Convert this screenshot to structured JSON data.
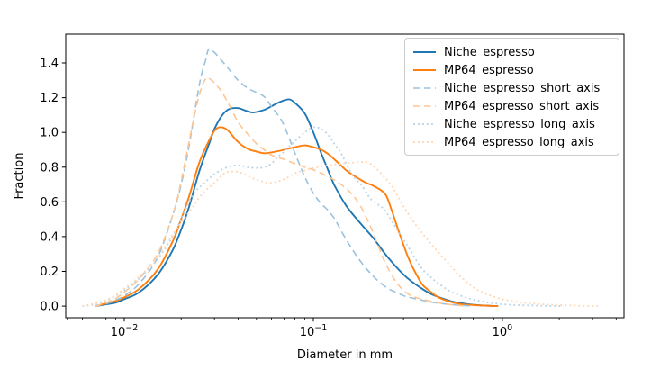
{
  "figure": {
    "background": "#ffffff",
    "spine_color": "#000000",
    "text_color": "#000000"
  },
  "chart_data": {
    "type": "line",
    "title": "",
    "xlabel": "Diameter in mm",
    "ylabel": "Fraction",
    "xscale": "log",
    "yscale": "linear",
    "xlim": [
      0.0049,
      4.4
    ],
    "ylim": [
      -0.067,
      1.566
    ],
    "grid": false,
    "legend": {
      "position": "upper right",
      "frame": true,
      "border_color": "#cccccc"
    },
    "xticks": [
      {
        "value": 0.01,
        "base": "10",
        "exp": "−2"
      },
      {
        "value": 0.1,
        "base": "10",
        "exp": "−1"
      },
      {
        "value": 1.0,
        "base": "10",
        "exp": "0"
      }
    ],
    "yticks": [
      {
        "value": 0.0,
        "label": "0.0"
      },
      {
        "value": 0.2,
        "label": "0.2"
      },
      {
        "value": 0.4,
        "label": "0.4"
      },
      {
        "value": 0.6,
        "label": "0.6"
      },
      {
        "value": 0.8,
        "label": "0.8"
      },
      {
        "value": 1.0,
        "label": "1.0"
      },
      {
        "value": 1.2,
        "label": "1.2"
      },
      {
        "value": 1.4,
        "label": "1.4"
      }
    ],
    "series": [
      {
        "name": "Niche_espresso",
        "color": "#1f77b4",
        "linestyle": "solid",
        "linewidth": 1.9,
        "points": [
          [
            0.007,
            0
          ],
          [
            0.008,
            0.01
          ],
          [
            0.009,
            0.02
          ],
          [
            0.01,
            0.04
          ],
          [
            0.012,
            0.08
          ],
          [
            0.015,
            0.18
          ],
          [
            0.018,
            0.32
          ],
          [
            0.02,
            0.44
          ],
          [
            0.022,
            0.57
          ],
          [
            0.025,
            0.78
          ],
          [
            0.028,
            0.93
          ],
          [
            0.03,
            1.02
          ],
          [
            0.033,
            1.1
          ],
          [
            0.036,
            1.135
          ],
          [
            0.04,
            1.14
          ],
          [
            0.044,
            1.125
          ],
          [
            0.048,
            1.115
          ],
          [
            0.055,
            1.13
          ],
          [
            0.06,
            1.15
          ],
          [
            0.065,
            1.17
          ],
          [
            0.07,
            1.185
          ],
          [
            0.075,
            1.19
          ],
          [
            0.08,
            1.17
          ],
          [
            0.09,
            1.11
          ],
          [
            0.1,
            1.0
          ],
          [
            0.11,
            0.88
          ],
          [
            0.12,
            0.78
          ],
          [
            0.13,
            0.69
          ],
          [
            0.15,
            0.575
          ],
          [
            0.17,
            0.5
          ],
          [
            0.19,
            0.44
          ],
          [
            0.21,
            0.385
          ],
          [
            0.24,
            0.3
          ],
          [
            0.28,
            0.215
          ],
          [
            0.32,
            0.155
          ],
          [
            0.37,
            0.105
          ],
          [
            0.42,
            0.07
          ],
          [
            0.48,
            0.045
          ],
          [
            0.55,
            0.025
          ],
          [
            0.65,
            0.012
          ],
          [
            0.75,
            0.005
          ],
          [
            0.85,
            0.002
          ],
          [
            0.95,
            0.0
          ]
        ]
      },
      {
        "name": "MP64_espresso",
        "color": "#ff7f0e",
        "linestyle": "solid",
        "linewidth": 1.9,
        "points": [
          [
            0.007,
            0
          ],
          [
            0.008,
            0.015
          ],
          [
            0.009,
            0.03
          ],
          [
            0.01,
            0.05
          ],
          [
            0.012,
            0.1
          ],
          [
            0.015,
            0.21
          ],
          [
            0.018,
            0.37
          ],
          [
            0.02,
            0.5
          ],
          [
            0.022,
            0.63
          ],
          [
            0.025,
            0.83
          ],
          [
            0.028,
            0.95
          ],
          [
            0.03,
            1.01
          ],
          [
            0.032,
            1.03
          ],
          [
            0.035,
            1.015
          ],
          [
            0.04,
            0.945
          ],
          [
            0.045,
            0.905
          ],
          [
            0.05,
            0.89
          ],
          [
            0.055,
            0.88
          ],
          [
            0.06,
            0.885
          ],
          [
            0.07,
            0.9
          ],
          [
            0.08,
            0.915
          ],
          [
            0.09,
            0.925
          ],
          [
            0.1,
            0.915
          ],
          [
            0.11,
            0.9
          ],
          [
            0.12,
            0.875
          ],
          [
            0.14,
            0.81
          ],
          [
            0.15,
            0.78
          ],
          [
            0.17,
            0.74
          ],
          [
            0.19,
            0.71
          ],
          [
            0.21,
            0.69
          ],
          [
            0.24,
            0.645
          ],
          [
            0.26,
            0.55
          ],
          [
            0.285,
            0.42
          ],
          [
            0.31,
            0.31
          ],
          [
            0.33,
            0.24
          ],
          [
            0.36,
            0.16
          ],
          [
            0.38,
            0.12
          ],
          [
            0.42,
            0.08
          ],
          [
            0.46,
            0.05
          ],
          [
            0.52,
            0.028
          ],
          [
            0.6,
            0.012
          ],
          [
            0.7,
            0.006
          ],
          [
            0.8,
            0.003
          ],
          [
            0.95,
            0.0
          ]
        ]
      },
      {
        "name": "Niche_espresso_short_axis",
        "color": "#9ac2dd",
        "linestyle": "dashed",
        "linewidth": 1.6,
        "points": [
          [
            0.007,
            0
          ],
          [
            0.008,
            0.015
          ],
          [
            0.009,
            0.035
          ],
          [
            0.01,
            0.06
          ],
          [
            0.012,
            0.13
          ],
          [
            0.015,
            0.28
          ],
          [
            0.018,
            0.52
          ],
          [
            0.02,
            0.7
          ],
          [
            0.022,
            0.92
          ],
          [
            0.025,
            1.28
          ],
          [
            0.027,
            1.42
          ],
          [
            0.028,
            1.48
          ],
          [
            0.03,
            1.46
          ],
          [
            0.033,
            1.41
          ],
          [
            0.036,
            1.36
          ],
          [
            0.04,
            1.3
          ],
          [
            0.045,
            1.255
          ],
          [
            0.05,
            1.23
          ],
          [
            0.055,
            1.205
          ],
          [
            0.06,
            1.15
          ],
          [
            0.065,
            1.1
          ],
          [
            0.07,
            1.04
          ],
          [
            0.08,
            0.88
          ],
          [
            0.09,
            0.745
          ],
          [
            0.1,
            0.65
          ],
          [
            0.11,
            0.59
          ],
          [
            0.12,
            0.55
          ],
          [
            0.13,
            0.5
          ],
          [
            0.14,
            0.435
          ],
          [
            0.16,
            0.33
          ],
          [
            0.18,
            0.25
          ],
          [
            0.2,
            0.19
          ],
          [
            0.22,
            0.145
          ],
          [
            0.25,
            0.1
          ],
          [
            0.28,
            0.075
          ],
          [
            0.31,
            0.055
          ],
          [
            0.35,
            0.042
          ],
          [
            0.4,
            0.028
          ],
          [
            0.45,
            0.018
          ],
          [
            0.52,
            0.01
          ],
          [
            0.6,
            0.005
          ],
          [
            0.7,
            0.0
          ]
        ]
      },
      {
        "name": "MP64_espresso_short_axis",
        "color": "#ffc593",
        "linestyle": "dashed",
        "linewidth": 1.6,
        "points": [
          [
            0.007,
            0
          ],
          [
            0.008,
            0.02
          ],
          [
            0.009,
            0.045
          ],
          [
            0.01,
            0.08
          ],
          [
            0.012,
            0.16
          ],
          [
            0.015,
            0.3
          ],
          [
            0.018,
            0.52
          ],
          [
            0.02,
            0.72
          ],
          [
            0.023,
            1.05
          ],
          [
            0.025,
            1.22
          ],
          [
            0.027,
            1.31
          ],
          [
            0.029,
            1.3
          ],
          [
            0.032,
            1.25
          ],
          [
            0.035,
            1.18
          ],
          [
            0.04,
            1.06
          ],
          [
            0.045,
            0.99
          ],
          [
            0.05,
            0.935
          ],
          [
            0.055,
            0.9
          ],
          [
            0.06,
            0.87
          ],
          [
            0.07,
            0.845
          ],
          [
            0.08,
            0.82
          ],
          [
            0.09,
            0.8
          ],
          [
            0.1,
            0.785
          ],
          [
            0.12,
            0.745
          ],
          [
            0.14,
            0.7
          ],
          [
            0.16,
            0.645
          ],
          [
            0.18,
            0.565
          ],
          [
            0.2,
            0.46
          ],
          [
            0.22,
            0.35
          ],
          [
            0.24,
            0.25
          ],
          [
            0.27,
            0.15
          ],
          [
            0.3,
            0.09
          ],
          [
            0.33,
            0.06
          ],
          [
            0.37,
            0.042
          ],
          [
            0.42,
            0.028
          ],
          [
            0.48,
            0.015
          ],
          [
            0.55,
            0.007
          ],
          [
            0.65,
            0.0
          ]
        ]
      },
      {
        "name": "Niche_espresso_long_axis",
        "color": "#bcd6e8",
        "linestyle": "dotted",
        "linewidth": 1.9,
        "points": [
          [
            0.006,
            0
          ],
          [
            0.007,
            0.01
          ],
          [
            0.008,
            0.03
          ],
          [
            0.009,
            0.06
          ],
          [
            0.01,
            0.09
          ],
          [
            0.012,
            0.16
          ],
          [
            0.015,
            0.27
          ],
          [
            0.018,
            0.4
          ],
          [
            0.02,
            0.5
          ],
          [
            0.023,
            0.64
          ],
          [
            0.026,
            0.7
          ],
          [
            0.03,
            0.76
          ],
          [
            0.035,
            0.8
          ],
          [
            0.04,
            0.81
          ],
          [
            0.045,
            0.8
          ],
          [
            0.05,
            0.795
          ],
          [
            0.055,
            0.8
          ],
          [
            0.06,
            0.82
          ],
          [
            0.065,
            0.86
          ],
          [
            0.07,
            0.89
          ],
          [
            0.08,
            0.95
          ],
          [
            0.09,
            1.0
          ],
          [
            0.1,
            1.03
          ],
          [
            0.11,
            1.02
          ],
          [
            0.12,
            0.985
          ],
          [
            0.13,
            0.93
          ],
          [
            0.14,
            0.88
          ],
          [
            0.16,
            0.76
          ],
          [
            0.18,
            0.695
          ],
          [
            0.2,
            0.62
          ],
          [
            0.22,
            0.585
          ],
          [
            0.24,
            0.55
          ],
          [
            0.27,
            0.46
          ],
          [
            0.31,
            0.36
          ],
          [
            0.37,
            0.225
          ],
          [
            0.42,
            0.165
          ],
          [
            0.46,
            0.13
          ],
          [
            0.52,
            0.09
          ],
          [
            0.57,
            0.07
          ],
          [
            0.65,
            0.048
          ],
          [
            0.72,
            0.035
          ],
          [
            0.85,
            0.02
          ],
          [
            1.0,
            0.011
          ],
          [
            1.2,
            0.006
          ],
          [
            1.5,
            0.003
          ],
          [
            1.8,
            0.001
          ],
          [
            2.1,
            0.0
          ]
        ]
      },
      {
        "name": "MP64_espresso_long_axis",
        "color": "#ffd8b7",
        "linestyle": "dotted",
        "linewidth": 1.9,
        "points": [
          [
            0.006,
            0
          ],
          [
            0.007,
            0.015
          ],
          [
            0.008,
            0.035
          ],
          [
            0.009,
            0.065
          ],
          [
            0.01,
            0.1
          ],
          [
            0.012,
            0.17
          ],
          [
            0.015,
            0.28
          ],
          [
            0.018,
            0.41
          ],
          [
            0.02,
            0.48
          ],
          [
            0.023,
            0.57
          ],
          [
            0.026,
            0.65
          ],
          [
            0.03,
            0.71
          ],
          [
            0.034,
            0.765
          ],
          [
            0.038,
            0.775
          ],
          [
            0.042,
            0.765
          ],
          [
            0.048,
            0.735
          ],
          [
            0.055,
            0.715
          ],
          [
            0.06,
            0.71
          ],
          [
            0.07,
            0.73
          ],
          [
            0.08,
            0.765
          ],
          [
            0.09,
            0.78
          ],
          [
            0.1,
            0.795
          ],
          [
            0.12,
            0.81
          ],
          [
            0.14,
            0.82
          ],
          [
            0.16,
            0.825
          ],
          [
            0.18,
            0.83
          ],
          [
            0.2,
            0.82
          ],
          [
            0.23,
            0.76
          ],
          [
            0.26,
            0.69
          ],
          [
            0.3,
            0.575
          ],
          [
            0.35,
            0.465
          ],
          [
            0.4,
            0.385
          ],
          [
            0.45,
            0.32
          ],
          [
            0.5,
            0.265
          ],
          [
            0.55,
            0.215
          ],
          [
            0.6,
            0.17
          ],
          [
            0.7,
            0.11
          ],
          [
            0.8,
            0.075
          ],
          [
            0.9,
            0.055
          ],
          [
            1.0,
            0.04
          ],
          [
            1.2,
            0.025
          ],
          [
            1.4,
            0.016
          ],
          [
            1.7,
            0.009
          ],
          [
            2.0,
            0.006
          ],
          [
            2.4,
            0.003
          ],
          [
            2.8,
            0.001
          ],
          [
            3.2,
            0.0
          ]
        ]
      }
    ]
  }
}
